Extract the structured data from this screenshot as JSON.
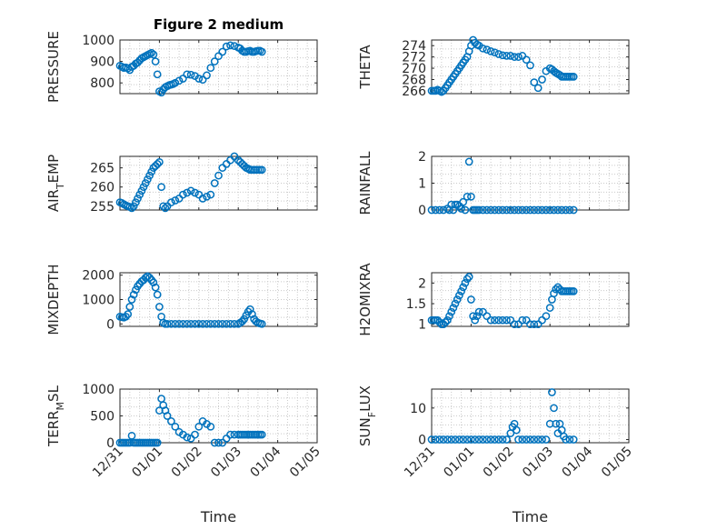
{
  "figure_title": "Figure 2 medium",
  "chart_data": [
    {
      "type": "scatter",
      "id": "pressure",
      "ylabel": "PRESSURE",
      "ylabel_sub": null,
      "xlabel": "",
      "title": "Figure 2 medium",
      "xlim": [
        0,
        5
      ],
      "ylim": [
        750,
        1000
      ],
      "yticks": [
        800,
        900,
        1000
      ],
      "xticks": [
        0,
        1,
        2,
        3,
        4,
        5
      ],
      "xticklabels": [],
      "series": [
        {
          "name": "PRESSURE",
          "x": [
            0.0,
            0.05,
            0.1,
            0.15,
            0.2,
            0.25,
            0.3,
            0.35,
            0.4,
            0.45,
            0.5,
            0.55,
            0.6,
            0.65,
            0.7,
            0.75,
            0.8,
            0.85,
            0.9,
            0.95,
            1.0,
            1.05,
            1.1,
            1.15,
            1.2,
            1.25,
            1.3,
            1.35,
            1.4,
            1.5,
            1.6,
            1.7,
            1.8,
            1.9,
            2.0,
            2.1,
            2.2,
            2.3,
            2.4,
            2.5,
            2.6,
            2.7,
            2.8,
            2.9,
            3.0,
            3.05,
            3.1,
            3.15,
            3.2,
            3.25,
            3.3,
            3.35,
            3.4,
            3.45,
            3.5,
            3.55,
            3.6
          ],
          "y": [
            880,
            875,
            870,
            872,
            868,
            860,
            875,
            880,
            890,
            895,
            905,
            915,
            920,
            925,
            930,
            935,
            940,
            932,
            900,
            840,
            760,
            755,
            770,
            780,
            785,
            790,
            792,
            795,
            800,
            810,
            820,
            840,
            838,
            832,
            820,
            815,
            835,
            870,
            900,
            925,
            945,
            970,
            975,
            972,
            965,
            960,
            950,
            945,
            945,
            948,
            950,
            945,
            945,
            948,
            950,
            950,
            945
          ]
        }
      ]
    },
    {
      "type": "scatter",
      "id": "theta",
      "ylabel": "THETA",
      "ylabel_sub": null,
      "xlabel": "",
      "title": "",
      "xlim": [
        0,
        5
      ],
      "ylim": [
        265.5,
        275
      ],
      "yticks": [
        266,
        268,
        270,
        272,
        274
      ],
      "xticks": [
        0,
        1,
        2,
        3,
        4,
        5
      ],
      "xticklabels": [],
      "series": [
        {
          "name": "THETA",
          "x": [
            0.0,
            0.05,
            0.1,
            0.15,
            0.2,
            0.25,
            0.3,
            0.35,
            0.4,
            0.45,
            0.5,
            0.55,
            0.6,
            0.65,
            0.7,
            0.75,
            0.8,
            0.85,
            0.9,
            0.95,
            1.0,
            1.05,
            1.1,
            1.15,
            1.2,
            1.3,
            1.4,
            1.5,
            1.6,
            1.7,
            1.8,
            1.9,
            2.0,
            2.1,
            2.2,
            2.3,
            2.4,
            2.5,
            2.6,
            2.7,
            2.8,
            2.9,
            3.0,
            3.05,
            3.1,
            3.15,
            3.2,
            3.25,
            3.3,
            3.35,
            3.4,
            3.45,
            3.5,
            3.55,
            3.6
          ],
          "y": [
            266,
            266,
            266,
            266.2,
            266,
            265.8,
            266,
            266.5,
            267,
            267.5,
            268,
            268.5,
            269,
            269.5,
            270,
            270.5,
            271,
            271.5,
            272,
            273,
            274,
            275,
            274.5,
            274.2,
            274,
            273.5,
            273.3,
            273,
            272.8,
            272.5,
            272.3,
            272.2,
            272.2,
            272,
            272,
            272.2,
            271.5,
            270.5,
            267.5,
            266.5,
            268,
            269.5,
            270,
            269.8,
            269.5,
            269.2,
            269,
            268.8,
            268.5,
            268.5,
            268.5,
            268.5,
            268.5,
            268.5,
            268.5
          ]
        }
      ]
    },
    {
      "type": "scatter",
      "id": "air_temp",
      "ylabel": "AIR",
      "ylabel_sub": "T",
      "ylabel_tail": "EMP",
      "xlabel": "",
      "title": "",
      "xlim": [
        0,
        5
      ],
      "ylim": [
        254,
        268
      ],
      "yticks": [
        255,
        260,
        265
      ],
      "xticks": [
        0,
        1,
        2,
        3,
        4,
        5
      ],
      "xticklabels": [],
      "series": [
        {
          "name": "AIR_TEMP",
          "x": [
            0.0,
            0.05,
            0.1,
            0.15,
            0.2,
            0.25,
            0.3,
            0.35,
            0.4,
            0.45,
            0.5,
            0.55,
            0.6,
            0.65,
            0.7,
            0.75,
            0.8,
            0.85,
            0.9,
            0.95,
            1.0,
            1.05,
            1.1,
            1.15,
            1.2,
            1.3,
            1.4,
            1.5,
            1.6,
            1.7,
            1.8,
            1.9,
            2.0,
            2.1,
            2.2,
            2.3,
            2.4,
            2.5,
            2.6,
            2.7,
            2.8,
            2.9,
            3.0,
            3.05,
            3.1,
            3.15,
            3.2,
            3.25,
            3.3,
            3.35,
            3.4,
            3.45,
            3.5,
            3.55,
            3.6
          ],
          "y": [
            256,
            255.8,
            255.5,
            255.2,
            255,
            254.8,
            254.5,
            255,
            256,
            257,
            258,
            259,
            260,
            261,
            262,
            263,
            264,
            265,
            265.5,
            266,
            266.5,
            260,
            255,
            254.5,
            255,
            256,
            256.5,
            257,
            258,
            258.5,
            259,
            258.5,
            258,
            257,
            257.5,
            258,
            261,
            263,
            265,
            266,
            267,
            268,
            267,
            266.5,
            266,
            265.5,
            265,
            264.8,
            264.5,
            264.5,
            264.5,
            264.5,
            264.5,
            264.5,
            264.5
          ]
        }
      ]
    },
    {
      "type": "scatter",
      "id": "rainfall",
      "ylabel": "RAINFALL",
      "ylabel_sub": null,
      "xlabel": "",
      "title": "",
      "xlim": [
        0,
        5
      ],
      "ylim": [
        0,
        2
      ],
      "yticks": [
        0,
        1,
        2
      ],
      "xticks": [
        0,
        1,
        2,
        3,
        4,
        5
      ],
      "xticklabels": [],
      "series": [
        {
          "name": "RAINFALL",
          "x": [
            0.0,
            0.1,
            0.2,
            0.3,
            0.4,
            0.45,
            0.5,
            0.55,
            0.6,
            0.65,
            0.7,
            0.75,
            0.8,
            0.85,
            0.9,
            0.95,
            1.0,
            1.05,
            1.1,
            1.15,
            1.2,
            1.3,
            1.4,
            1.5,
            1.6,
            1.7,
            1.8,
            1.9,
            2.0,
            2.1,
            2.2,
            2.3,
            2.4,
            2.5,
            2.6,
            2.7,
            2.8,
            2.9,
            3.0,
            3.1,
            3.2,
            3.3,
            3.4,
            3.5,
            3.6
          ],
          "y": [
            0,
            0,
            0,
            0,
            0.05,
            0,
            0.2,
            0,
            0.2,
            0.2,
            0.15,
            0.05,
            0.3,
            0,
            0.5,
            1.8,
            0.5,
            0,
            0,
            0,
            0,
            0,
            0,
            0,
            0,
            0,
            0,
            0,
            0,
            0,
            0,
            0,
            0,
            0,
            0,
            0,
            0,
            0,
            0,
            0,
            0,
            0,
            0,
            0,
            0
          ]
        }
      ]
    },
    {
      "type": "scatter",
      "id": "mixdepth",
      "ylabel": "MIXDEPTH",
      "ylabel_sub": null,
      "xlabel": "",
      "title": "",
      "xlim": [
        0,
        5
      ],
      "ylim": [
        -100,
        2100
      ],
      "yticks": [
        0,
        1000,
        2000
      ],
      "xticks": [
        0,
        1,
        2,
        3,
        4,
        5
      ],
      "xticklabels": [],
      "series": [
        {
          "name": "MIXDEPTH",
          "x": [
            0.0,
            0.05,
            0.1,
            0.15,
            0.2,
            0.25,
            0.3,
            0.35,
            0.4,
            0.45,
            0.5,
            0.55,
            0.6,
            0.65,
            0.7,
            0.75,
            0.8,
            0.85,
            0.9,
            0.95,
            1.0,
            1.05,
            1.1,
            1.15,
            1.2,
            1.3,
            1.4,
            1.5,
            1.6,
            1.7,
            1.8,
            1.9,
            2.0,
            2.1,
            2.2,
            2.3,
            2.4,
            2.5,
            2.6,
            2.7,
            2.8,
            2.9,
            3.0,
            3.05,
            3.1,
            3.15,
            3.2,
            3.25,
            3.3,
            3.35,
            3.4,
            3.45,
            3.5,
            3.55,
            3.6
          ],
          "y": [
            300,
            280,
            260,
            300,
            400,
            700,
            1000,
            1200,
            1400,
            1550,
            1650,
            1750,
            1800,
            1900,
            1950,
            1900,
            1800,
            1700,
            1500,
            1200,
            700,
            300,
            50,
            0,
            0,
            0,
            0,
            0,
            0,
            0,
            0,
            0,
            0,
            0,
            0,
            0,
            0,
            0,
            0,
            0,
            0,
            0,
            0,
            50,
            100,
            200,
            350,
            500,
            600,
            400,
            200,
            100,
            50,
            20,
            0
          ]
        }
      ]
    },
    {
      "type": "scatter",
      "id": "h2omixra",
      "ylabel": "H2OMIXRA",
      "ylabel_sub": null,
      "xlabel": "",
      "title": "",
      "xlim": [
        0,
        5
      ],
      "ylim": [
        0.95,
        2.25
      ],
      "yticks": [
        1,
        1.5,
        2
      ],
      "xticks": [
        0,
        1,
        2,
        3,
        4,
        5
      ],
      "xticklabels": [],
      "series": [
        {
          "name": "H2OMIXRA",
          "x": [
            0.0,
            0.05,
            0.1,
            0.15,
            0.2,
            0.25,
            0.3,
            0.35,
            0.4,
            0.45,
            0.5,
            0.55,
            0.6,
            0.65,
            0.7,
            0.75,
            0.8,
            0.85,
            0.9,
            0.95,
            1.0,
            1.05,
            1.1,
            1.15,
            1.2,
            1.3,
            1.4,
            1.5,
            1.6,
            1.7,
            1.8,
            1.9,
            2.0,
            2.1,
            2.2,
            2.3,
            2.4,
            2.5,
            2.6,
            2.7,
            2.8,
            2.9,
            3.0,
            3.05,
            3.1,
            3.15,
            3.2,
            3.25,
            3.3,
            3.35,
            3.4,
            3.45,
            3.5,
            3.55,
            3.6
          ],
          "y": [
            1.1,
            1.1,
            1.1,
            1.1,
            1.05,
            1.0,
            1.0,
            1.05,
            1.1,
            1.2,
            1.3,
            1.4,
            1.5,
            1.6,
            1.7,
            1.8,
            1.9,
            2.0,
            2.1,
            2.15,
            1.6,
            1.2,
            1.1,
            1.2,
            1.3,
            1.3,
            1.2,
            1.1,
            1.1,
            1.1,
            1.1,
            1.1,
            1.1,
            1.0,
            1.0,
            1.1,
            1.1,
            1.0,
            1.0,
            1.0,
            1.1,
            1.2,
            1.4,
            1.6,
            1.75,
            1.85,
            1.9,
            1.85,
            1.8,
            1.8,
            1.8,
            1.8,
            1.8,
            1.8,
            1.8
          ]
        }
      ]
    },
    {
      "type": "scatter",
      "id": "terr_msl",
      "ylabel": "TERR",
      "ylabel_sub": "M",
      "ylabel_tail": "SL",
      "xlabel": "Time",
      "title": "",
      "xlim": [
        0,
        5
      ],
      "ylim": [
        0,
        1000
      ],
      "yticks": [
        0,
        500,
        1000
      ],
      "xticks": [
        0,
        1,
        2,
        3,
        4,
        5
      ],
      "xticklabels": [
        "12/31",
        "01/01",
        "01/02",
        "01/03",
        "01/04",
        "01/05"
      ],
      "series": [
        {
          "name": "TERR_MSL",
          "x": [
            0.0,
            0.05,
            0.1,
            0.15,
            0.2,
            0.25,
            0.3,
            0.35,
            0.4,
            0.45,
            0.5,
            0.55,
            0.6,
            0.65,
            0.7,
            0.75,
            0.8,
            0.85,
            0.9,
            0.95,
            1.0,
            1.05,
            1.1,
            1.15,
            1.2,
            1.3,
            1.4,
            1.5,
            1.6,
            1.7,
            1.8,
            1.9,
            2.0,
            2.1,
            2.2,
            2.3,
            2.4,
            2.5,
            2.6,
            2.7,
            2.8,
            2.9,
            3.0,
            3.05,
            3.1,
            3.15,
            3.2,
            3.25,
            3.3,
            3.35,
            3.4,
            3.45,
            3.5,
            3.55,
            3.6
          ],
          "y": [
            0,
            0,
            0,
            0,
            0,
            0,
            130,
            0,
            0,
            0,
            0,
            0,
            0,
            0,
            0,
            0,
            0,
            0,
            0,
            0,
            600,
            820,
            700,
            600,
            500,
            400,
            300,
            200,
            150,
            100,
            80,
            150,
            300,
            400,
            350,
            300,
            0,
            0,
            0,
            80,
            150,
            150,
            150,
            150,
            150,
            150,
            150,
            150,
            150,
            150,
            150,
            150,
            150,
            150,
            150
          ]
        }
      ]
    },
    {
      "type": "scatter",
      "id": "sun_flux",
      "ylabel": "SUN",
      "ylabel_sub": "F",
      "ylabel_tail": "LUX",
      "xlabel": "Time",
      "title": "",
      "xlim": [
        0,
        5
      ],
      "ylim": [
        -1,
        16
      ],
      "yticks": [
        0,
        10
      ],
      "xticks": [
        0,
        1,
        2,
        3,
        4,
        5
      ],
      "xticklabels": [
        "12/31",
        "01/01",
        "01/02",
        "01/03",
        "01/04",
        "01/05"
      ],
      "series": [
        {
          "name": "SUN_FLUX",
          "x": [
            0.0,
            0.1,
            0.2,
            0.3,
            0.4,
            0.5,
            0.6,
            0.7,
            0.8,
            0.9,
            1.0,
            1.1,
            1.2,
            1.3,
            1.4,
            1.5,
            1.6,
            1.7,
            1.8,
            1.9,
            2.0,
            2.05,
            2.1,
            2.15,
            2.2,
            2.3,
            2.4,
            2.5,
            2.6,
            2.7,
            2.8,
            2.9,
            3.0,
            3.05,
            3.1,
            3.15,
            3.2,
            3.25,
            3.3,
            3.35,
            3.4,
            3.5,
            3.6
          ],
          "y": [
            0,
            0,
            0,
            0,
            0,
            0,
            0,
            0,
            0,
            0,
            0,
            0,
            0,
            0,
            0,
            0,
            0,
            0,
            0,
            0,
            2,
            4,
            5,
            3,
            0,
            0,
            0,
            0,
            0,
            0,
            0,
            0,
            5,
            15,
            10,
            5,
            2,
            5,
            3,
            1,
            0,
            0,
            0
          ]
        }
      ]
    }
  ]
}
